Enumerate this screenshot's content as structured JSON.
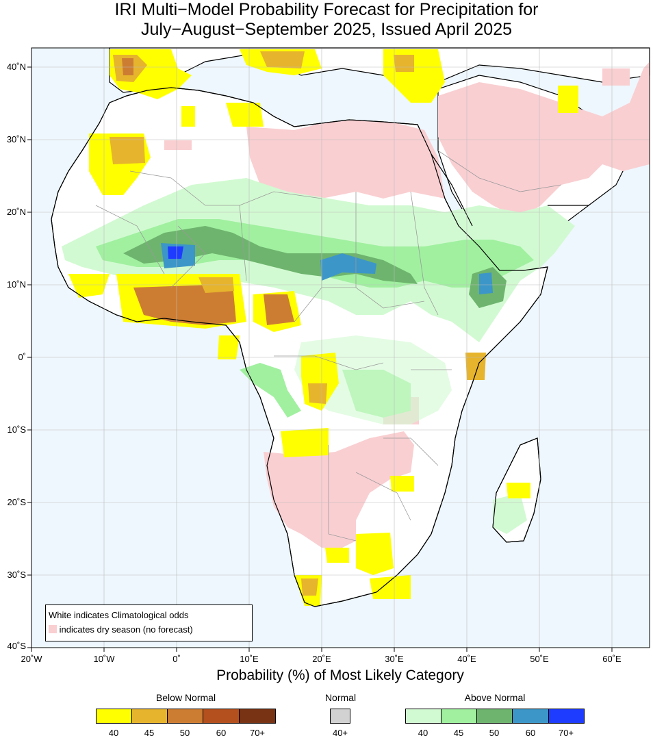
{
  "title": {
    "line1": "IRI Multi−Model Probability Forecast for Precipitation for",
    "line2": "July−August−September 2025, Issued April 2025"
  },
  "map": {
    "region": "Africa",
    "background_ocean": "#eef7fd",
    "border_color": "#000000",
    "x_axis_labels": [
      "20˚W",
      "10˚W",
      "0˚",
      "10˚E",
      "20˚E",
      "30˚E",
      "40˚E",
      "50˚E",
      "60˚E"
    ],
    "y_axis_labels": [
      "40˚N",
      "30˚N",
      "20˚N",
      "10˚N",
      "0˚",
      "10˚S",
      "20˚S",
      "30˚S",
      "40˚S"
    ]
  },
  "legend": {
    "climatology": "White indicates Climatological odds",
    "dry_season": "indicates dry season (no forecast)",
    "dry_color": "#f9cfd2"
  },
  "colorbar": {
    "title": "Probability (%) of Most Likely Category",
    "below": {
      "label": "Below Normal",
      "ticks": [
        "40",
        "45",
        "50",
        "60",
        "70+"
      ],
      "colors": [
        "#ffff00",
        "#e6b42d",
        "#cd7d32",
        "#b4501e",
        "#783214"
      ]
    },
    "normal": {
      "label": "Normal",
      "ticks": [
        "40+"
      ],
      "colors": [
        "#d2d2d2"
      ]
    },
    "above": {
      "label": "Above Normal",
      "ticks": [
        "40",
        "45",
        "50",
        "60",
        "70+"
      ],
      "colors": [
        "#d2fad2",
        "#a0f0a0",
        "#6eb46e",
        "#3c96c8",
        "#1e3cff"
      ]
    }
  }
}
